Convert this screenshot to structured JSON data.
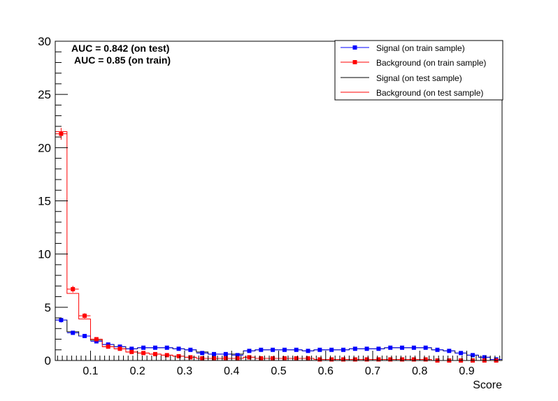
{
  "chart_data": {
    "type": "histogram",
    "xlabel": "Score",
    "ylabel": "",
    "xlim": [
      0.025,
      0.975
    ],
    "ylim": [
      0,
      30
    ],
    "xticks": [
      "0.1",
      "0.2",
      "0.3",
      "0.4",
      "0.5",
      "0.6",
      "0.7",
      "0.8",
      "0.9"
    ],
    "xtick_values": [
      0.1,
      0.2,
      0.3,
      0.4,
      0.5,
      0.6,
      0.7,
      0.8,
      0.9
    ],
    "yticks": [
      "0",
      "5",
      "10",
      "15",
      "20",
      "25",
      "30"
    ],
    "ytick_values": [
      0,
      5,
      10,
      15,
      20,
      25,
      30
    ],
    "bin_width": 0.025,
    "bin_centers": [
      0.0375,
      0.0625,
      0.0875,
      0.1125,
      0.1375,
      0.1625,
      0.1875,
      0.2125,
      0.2375,
      0.2625,
      0.2875,
      0.3125,
      0.3375,
      0.3625,
      0.3875,
      0.4125,
      0.4375,
      0.4625,
      0.4875,
      0.5125,
      0.5375,
      0.5625,
      0.5875,
      0.6125,
      0.6375,
      0.6625,
      0.6875,
      0.7125,
      0.7375,
      0.7625,
      0.7875,
      0.8125,
      0.8375,
      0.8625,
      0.8875,
      0.9125,
      0.9375,
      0.9625
    ],
    "annotations": [
      "AUC = 0.842  (on test)",
      "AUC = 0.85 (on train)"
    ],
    "legend_position": "top-right",
    "series": [
      {
        "name": "Signal (on train sample)",
        "kind": "markers",
        "color": "#0000ff",
        "values": [
          3.8,
          2.6,
          2.3,
          1.8,
          1.5,
          1.3,
          1.1,
          1.2,
          1.2,
          1.2,
          1.1,
          1.0,
          0.7,
          0.6,
          0.6,
          0.5,
          0.9,
          1.0,
          1.0,
          1.0,
          1.0,
          0.9,
          1.0,
          1.0,
          1.0,
          1.1,
          1.1,
          1.1,
          1.2,
          1.2,
          1.2,
          1.2,
          1.0,
          0.9,
          0.7,
          0.5,
          0.3,
          0.1
        ]
      },
      {
        "name": "Background (on train sample)",
        "kind": "markers",
        "color": "#ff0000",
        "values": [
          21.3,
          6.7,
          4.2,
          2.0,
          1.3,
          1.1,
          0.8,
          0.7,
          0.6,
          0.5,
          0.4,
          0.3,
          0.2,
          0.2,
          0.2,
          0.2,
          0.3,
          0.2,
          0.2,
          0.2,
          0.2,
          0.2,
          0.1,
          0.1,
          0.1,
          0.1,
          0.1,
          0.1,
          0.1,
          0.1,
          0.1,
          0.1,
          0.0,
          0.0,
          0.0,
          0.0,
          0.0,
          0.0
        ]
      },
      {
        "name": "Signal (on test sample)",
        "kind": "step",
        "color": "#000000",
        "values": [
          3.8,
          2.7,
          2.3,
          1.9,
          1.5,
          1.3,
          1.1,
          1.2,
          1.2,
          1.2,
          1.1,
          1.0,
          0.8,
          0.6,
          0.6,
          0.6,
          0.9,
          1.0,
          1.0,
          1.0,
          1.0,
          0.9,
          1.0,
          1.0,
          1.0,
          1.1,
          1.1,
          1.1,
          1.2,
          1.2,
          1.2,
          1.2,
          1.0,
          0.9,
          0.7,
          0.5,
          0.3,
          0.1
        ]
      },
      {
        "name": "Background (on test sample)",
        "kind": "step",
        "color": "#ff0000",
        "values": [
          21.5,
          6.3,
          3.9,
          2.0,
          1.3,
          1.1,
          0.8,
          0.7,
          0.6,
          0.5,
          0.4,
          0.3,
          0.2,
          0.2,
          0.2,
          0.2,
          0.3,
          0.2,
          0.2,
          0.2,
          0.2,
          0.2,
          0.1,
          0.1,
          0.1,
          0.1,
          0.1,
          0.1,
          0.1,
          0.1,
          0.1,
          0.1,
          0.0,
          0.0,
          0.0,
          0.0,
          0.0,
          0.0
        ]
      }
    ]
  }
}
